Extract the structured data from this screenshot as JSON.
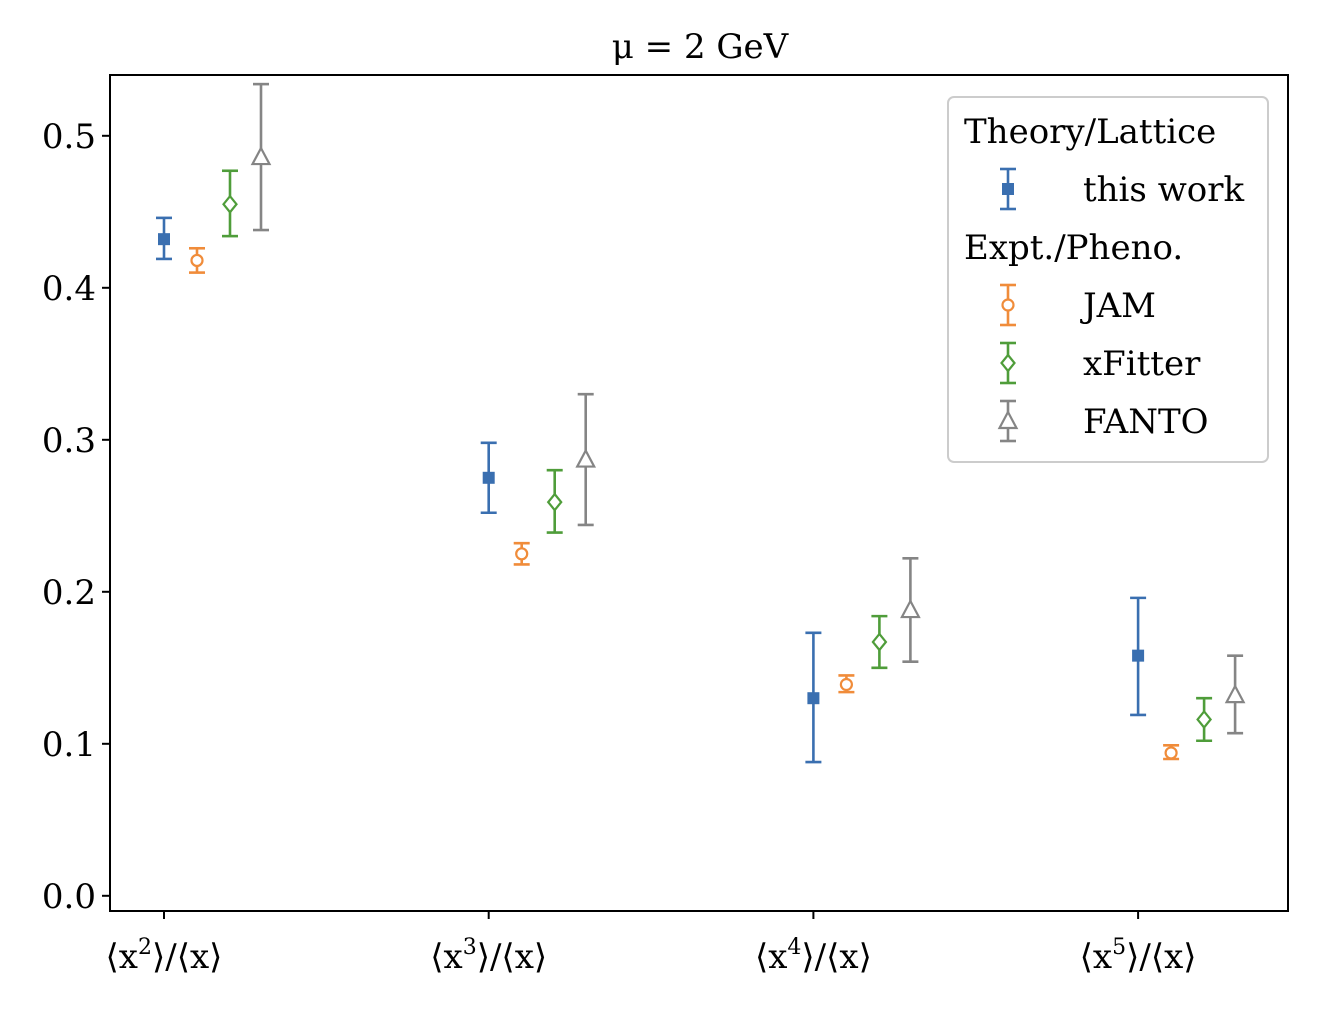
{
  "chart_data": {
    "type": "scatter",
    "title": "μ = 2 GeV",
    "categories": [
      {
        "base": "⟨x",
        "sup": "2",
        "tail": "⟩/⟨x⟩"
      },
      {
        "base": "⟨x",
        "sup": "3",
        "tail": "⟩/⟨x⟩"
      },
      {
        "base": "⟨x",
        "sup": "4",
        "tail": "⟩/⟨x⟩"
      },
      {
        "base": "⟨x",
        "sup": "5",
        "tail": "⟩/⟨x⟩"
      }
    ],
    "ylim": [
      -0.01,
      0.54
    ],
    "yticks": [
      "0.0",
      "0.1",
      "0.2",
      "0.3",
      "0.4",
      "0.5"
    ],
    "grid": false,
    "legend_position": "top-right",
    "legend_groups": [
      {
        "title": "Theory/Lattice",
        "series": [
          "this work"
        ]
      },
      {
        "title": "Expt./Pheno.",
        "series": [
          "JAM",
          "xFitter",
          "FANTO"
        ]
      }
    ],
    "series": [
      {
        "name": "this work",
        "marker": "filled-square",
        "color": "#3a6fb0",
        "points": [
          {
            "cat": 0,
            "y": 0.432,
            "lo": 0.419,
            "hi": 0.446
          },
          {
            "cat": 1,
            "y": 0.275,
            "lo": 0.252,
            "hi": 0.298
          },
          {
            "cat": 2,
            "y": 0.13,
            "lo": 0.088,
            "hi": 0.173
          },
          {
            "cat": 3,
            "y": 0.158,
            "lo": 0.119,
            "hi": 0.196
          }
        ]
      },
      {
        "name": "JAM",
        "marker": "open-circle",
        "color": "#f08c3a",
        "points": [
          {
            "cat": 0,
            "y": 0.418,
            "lo": 0.41,
            "hi": 0.426
          },
          {
            "cat": 1,
            "y": 0.225,
            "lo": 0.218,
            "hi": 0.232
          },
          {
            "cat": 2,
            "y": 0.139,
            "lo": 0.134,
            "hi": 0.145
          },
          {
            "cat": 3,
            "y": 0.094,
            "lo": 0.09,
            "hi": 0.099
          }
        ]
      },
      {
        "name": "xFitter",
        "marker": "open-diamond",
        "color": "#4f9d3a",
        "points": [
          {
            "cat": 0,
            "y": 0.455,
            "lo": 0.434,
            "hi": 0.477
          },
          {
            "cat": 1,
            "y": 0.259,
            "lo": 0.239,
            "hi": 0.28
          },
          {
            "cat": 2,
            "y": 0.167,
            "lo": 0.15,
            "hi": 0.184
          },
          {
            "cat": 3,
            "y": 0.116,
            "lo": 0.102,
            "hi": 0.13
          }
        ]
      },
      {
        "name": "FANTO",
        "marker": "open-triangle",
        "color": "#858585",
        "points": [
          {
            "cat": 0,
            "y": 0.486,
            "lo": 0.438,
            "hi": 0.534
          },
          {
            "cat": 1,
            "y": 0.287,
            "lo": 0.244,
            "hi": 0.33
          },
          {
            "cat": 2,
            "y": 0.188,
            "lo": 0.154,
            "hi": 0.222
          },
          {
            "cat": 3,
            "y": 0.132,
            "lo": 0.107,
            "hi": 0.158
          }
        ]
      }
    ]
  }
}
